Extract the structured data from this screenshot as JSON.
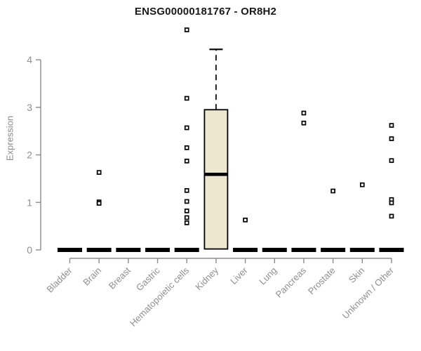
{
  "chart_data": {
    "type": "boxplot",
    "title": "ENSG00000181767 - OR8H2",
    "ylabel": "Expression",
    "xlabel": "",
    "ylim": [
      0,
      4.75
    ],
    "yticks": [
      0,
      1,
      2,
      3,
      4
    ],
    "grid": false,
    "legend": "none",
    "categories": [
      "Bladder",
      "Brain",
      "Breast",
      "Gastric",
      "Hematopoietic cells",
      "Kidney",
      "Liver",
      "Lung",
      "Pancreas",
      "Prostate",
      "Skin",
      "Unknown / Other"
    ],
    "boxes": [
      {
        "category": "Bladder",
        "q1": 0,
        "median": 0,
        "q3": 0,
        "whisker_low": 0,
        "whisker_high": 0,
        "outliers": []
      },
      {
        "category": "Brain",
        "q1": 0,
        "median": 0,
        "q3": 0,
        "whisker_low": 0,
        "whisker_high": 0,
        "outliers": [
          1.63,
          1.01,
          0.98
        ]
      },
      {
        "category": "Breast",
        "q1": 0,
        "median": 0,
        "q3": 0,
        "whisker_low": 0,
        "whisker_high": 0,
        "outliers": []
      },
      {
        "category": "Gastric",
        "q1": 0,
        "median": 0,
        "q3": 0,
        "whisker_low": 0,
        "whisker_high": 0,
        "outliers": []
      },
      {
        "category": "Hematopoietic cells",
        "q1": 0,
        "median": 0,
        "q3": 0,
        "whisker_low": 0,
        "whisker_high": 0,
        "outliers": [
          4.63,
          3.19,
          2.57,
          2.15,
          1.87,
          1.25,
          1.02,
          0.82,
          0.68,
          0.57
        ]
      },
      {
        "category": "Kidney",
        "q1": 0.02,
        "median": 1.59,
        "q3": 2.95,
        "whisker_low": 0.02,
        "whisker_high": 4.22,
        "outliers": []
      },
      {
        "category": "Liver",
        "q1": 0,
        "median": 0,
        "q3": 0,
        "whisker_low": 0,
        "whisker_high": 0,
        "outliers": [
          0.63
        ]
      },
      {
        "category": "Lung",
        "q1": 0,
        "median": 0,
        "q3": 0,
        "whisker_low": 0,
        "whisker_high": 0,
        "outliers": []
      },
      {
        "category": "Pancreas",
        "q1": 0,
        "median": 0,
        "q3": 0,
        "whisker_low": 0,
        "whisker_high": 0,
        "outliers": [
          2.88,
          2.67
        ]
      },
      {
        "category": "Prostate",
        "q1": 0,
        "median": 0,
        "q3": 0,
        "whisker_low": 0,
        "whisker_high": 0,
        "outliers": [
          1.24
        ]
      },
      {
        "category": "Skin",
        "q1": 0,
        "median": 0,
        "q3": 0,
        "whisker_low": 0,
        "whisker_high": 0,
        "outliers": [
          1.37
        ]
      },
      {
        "category": "Unknown / Other",
        "q1": 0,
        "median": 0,
        "q3": 0,
        "whisker_low": 0,
        "whisker_high": 0,
        "outliers": [
          2.62,
          2.34,
          1.88,
          1.06,
          0.99,
          0.71
        ]
      }
    ],
    "colors": {
      "box_fill": "#ece7ce",
      "box_border": "#000000",
      "median": "#000000",
      "whisker": "#000000",
      "outlier_border": "#000000",
      "outlier_fill": "#ffffff",
      "flat_bar": "#000000",
      "axis_line": "#8c8c8c",
      "tick_text": "#8f8f8f",
      "title_text": "#1a1a1a"
    }
  }
}
